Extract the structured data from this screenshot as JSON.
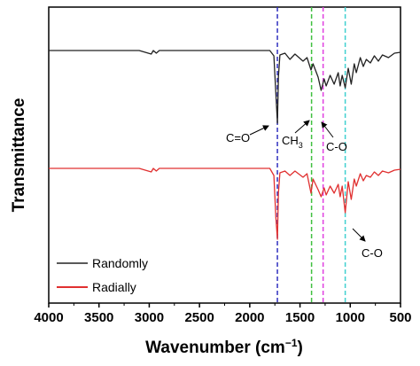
{
  "chart_data": {
    "type": "line",
    "xlabel": "Wavenumber (cm",
    "xlabel_sup": "−1",
    "xlabel_end": ")",
    "ylabel": "Transmittance",
    "xlim": [
      4000,
      500
    ],
    "x_reversed": true,
    "xticks": [
      "4000",
      "3500",
      "3000",
      "2500",
      "2000",
      "1500",
      "1000",
      "500"
    ],
    "y_ticks_shown": false,
    "grid": false,
    "legend_placement": "bottom-left",
    "series": [
      {
        "name": "Randomly",
        "color": "#222222",
        "points": [
          [
            4000,
            0
          ],
          [
            3100,
            0
          ],
          [
            2980,
            -4
          ],
          [
            2960,
            0
          ],
          [
            2930,
            -3
          ],
          [
            2900,
            0
          ],
          [
            1800,
            0
          ],
          [
            1760,
            -6
          ],
          [
            1740,
            -48
          ],
          [
            1725,
            -82
          ],
          [
            1715,
            -30
          ],
          [
            1700,
            -5
          ],
          [
            1650,
            -3
          ],
          [
            1600,
            -10
          ],
          [
            1550,
            -4
          ],
          [
            1470,
            -12
          ],
          [
            1430,
            -8
          ],
          [
            1390,
            -22
          ],
          [
            1370,
            -15
          ],
          [
            1320,
            -30
          ],
          [
            1290,
            -45
          ],
          [
            1260,
            -32
          ],
          [
            1240,
            -40
          ],
          [
            1200,
            -28
          ],
          [
            1160,
            -38
          ],
          [
            1120,
            -25
          ],
          [
            1100,
            -40
          ],
          [
            1080,
            -28
          ],
          [
            1050,
            -42
          ],
          [
            1020,
            -20
          ],
          [
            990,
            -38
          ],
          [
            960,
            -15
          ],
          [
            940,
            -25
          ],
          [
            900,
            -8
          ],
          [
            870,
            -18
          ],
          [
            840,
            -10
          ],
          [
            800,
            -14
          ],
          [
            760,
            -6
          ],
          [
            720,
            -12
          ],
          [
            680,
            -5
          ],
          [
            620,
            -8
          ],
          [
            560,
            -3
          ],
          [
            500,
            -2
          ]
        ]
      },
      {
        "name": "Radially",
        "color": "#e03030",
        "points": [
          [
            4000,
            0
          ],
          [
            3100,
            0
          ],
          [
            2980,
            -4
          ],
          [
            2960,
            0
          ],
          [
            2930,
            -3
          ],
          [
            2900,
            0
          ],
          [
            1800,
            0
          ],
          [
            1760,
            -8
          ],
          [
            1740,
            -55
          ],
          [
            1725,
            -80
          ],
          [
            1715,
            -28
          ],
          [
            1700,
            -5
          ],
          [
            1650,
            -3
          ],
          [
            1600,
            -8
          ],
          [
            1550,
            -3
          ],
          [
            1470,
            -10
          ],
          [
            1430,
            -6
          ],
          [
            1390,
            -28
          ],
          [
            1370,
            -12
          ],
          [
            1320,
            -24
          ],
          [
            1290,
            -32
          ],
          [
            1260,
            -22
          ],
          [
            1240,
            -30
          ],
          [
            1200,
            -20
          ],
          [
            1160,
            -28
          ],
          [
            1120,
            -18
          ],
          [
            1100,
            -32
          ],
          [
            1080,
            -20
          ],
          [
            1050,
            -50
          ],
          [
            1020,
            -15
          ],
          [
            990,
            -35
          ],
          [
            960,
            -12
          ],
          [
            940,
            -20
          ],
          [
            900,
            -6
          ],
          [
            870,
            -14
          ],
          [
            840,
            -8
          ],
          [
            800,
            -10
          ],
          [
            760,
            -4
          ],
          [
            720,
            -8
          ],
          [
            680,
            -3
          ],
          [
            620,
            -5
          ],
          [
            560,
            -2
          ],
          [
            500,
            -1
          ]
        ]
      }
    ],
    "reference_lines": [
      {
        "x": 1725,
        "color": "#3030c0"
      },
      {
        "x": 1385,
        "color": "#40c040"
      },
      {
        "x": 1270,
        "color": "#e040e0"
      },
      {
        "x": 1050,
        "color": "#40d0d0"
      }
    ],
    "annotations": [
      {
        "text": "C=O",
        "sub": "",
        "near_x": 1725,
        "arrow": true
      },
      {
        "text": "CH",
        "sub": "3",
        "near_x": 1385,
        "arrow": true
      },
      {
        "text": "C-O",
        "sub": "",
        "near_x": 1270,
        "arrow": true
      },
      {
        "text": "C-O",
        "sub": "",
        "near_x": 1050,
        "arrow": true
      }
    ]
  }
}
